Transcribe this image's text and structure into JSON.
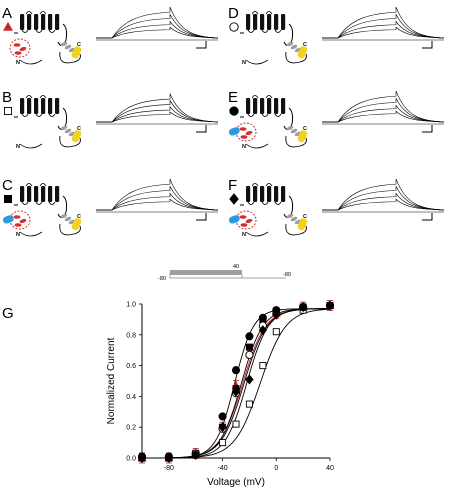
{
  "panels": [
    {
      "letter": "A",
      "marker": "triangle",
      "marker_color": "#c62828"
    },
    {
      "letter": "B",
      "marker": "open-square",
      "marker_color": "#000000"
    },
    {
      "letter": "C",
      "marker": "filled-square",
      "marker_color": "#000000"
    },
    {
      "letter": "D",
      "marker": "open-circle",
      "marker_color": "#000000"
    },
    {
      "letter": "E",
      "marker": "filled-circle",
      "marker_color": "#000000"
    },
    {
      "letter": "F",
      "marker": "filled-diamond",
      "marker_color": "#000000"
    }
  ],
  "topology_labels": {
    "n": "N",
    "c": "C"
  },
  "colors": {
    "red_domain": "#d32f2f",
    "blue_domain": "#2b9be0",
    "yellow_domain": "#f2d21b",
    "grey_domain": "#9e9e9e",
    "fit_red": "#b71c1c"
  },
  "protocol": {
    "left": "-80",
    "mid": "40",
    "right": "-80"
  },
  "panel_g_letter": "G",
  "chart_data": {
    "type": "scatter",
    "xlabel": "Voltage (mV)",
    "ylabel": "Normalized Current",
    "xlim": [
      -100,
      40
    ],
    "ylim": [
      0,
      1.0
    ],
    "xticks": [
      -80,
      -40,
      0,
      40
    ],
    "yticks": [
      0.0,
      0.2,
      0.4,
      0.6,
      0.8,
      1.0
    ],
    "series": [
      {
        "marker": "triangle",
        "color": "#b71c1c",
        "x": [
          -100,
          -80,
          -60,
          -40,
          -30,
          -20,
          -10,
          0,
          20,
          40
        ],
        "y": [
          0.0,
          0.0,
          0.03,
          0.2,
          0.47,
          0.68,
          0.87,
          0.94,
          0.98,
          0.99
        ],
        "v_half": -25,
        "k": 8.5
      },
      {
        "marker": "open-square",
        "color": "#000000",
        "x": [
          -100,
          -80,
          -60,
          -40,
          -30,
          -20,
          -10,
          0,
          20,
          40
        ],
        "y": [
          0.0,
          0.0,
          0.02,
          0.1,
          0.22,
          0.35,
          0.6,
          0.82,
          0.96,
          0.99
        ],
        "v_half": -12,
        "k": 9.5
      },
      {
        "marker": "filled-square",
        "color": "#000000",
        "x": [
          -100,
          -80,
          -60,
          -40,
          -30,
          -20,
          -10,
          0,
          20,
          40
        ],
        "y": [
          0.0,
          0.0,
          0.03,
          0.2,
          0.45,
          0.72,
          0.9,
          0.95,
          0.98,
          0.99
        ],
        "v_half": -26,
        "k": 8
      },
      {
        "marker": "open-circle",
        "color": "#000000",
        "x": [
          -100,
          -80,
          -60,
          -40,
          -30,
          -20,
          -10,
          0,
          20,
          40
        ],
        "y": [
          0.0,
          0.0,
          0.03,
          0.19,
          0.42,
          0.67,
          0.86,
          0.94,
          0.98,
          0.99
        ],
        "v_half": -24,
        "k": 8.5
      },
      {
        "marker": "filled-circle",
        "color": "#000000",
        "x": [
          -100,
          -80,
          -60,
          -40,
          -30,
          -20,
          -10,
          0,
          20,
          40
        ],
        "y": [
          0.01,
          0.01,
          0.02,
          0.27,
          0.57,
          0.79,
          0.91,
          0.96,
          0.98,
          0.99
        ],
        "v_half": -31,
        "k": 7
      },
      {
        "marker": "filled-diamond",
        "color": "#000000",
        "x": [
          -100,
          -80,
          -60,
          -40,
          -30,
          -20,
          -10,
          0,
          20,
          40
        ],
        "y": [
          0.0,
          0.0,
          0.02,
          0.2,
          0.43,
          0.51,
          0.83,
          0.93,
          0.98,
          0.99
        ],
        "v_half": -22,
        "k": 8
      }
    ]
  }
}
